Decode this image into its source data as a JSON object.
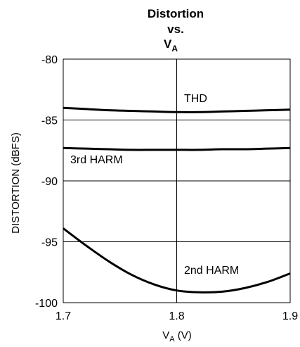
{
  "chart_data": {
    "type": "line",
    "title": "Distortion",
    "subtitle": "vs.",
    "title_line3_main": "V",
    "title_line3_sub": "A",
    "xlabel_main": "V",
    "xlabel_sub": "A",
    "xlabel_unit": " (V)",
    "ylabel": "DISTORTION (dBFS)",
    "xlim": [
      1.7,
      1.9
    ],
    "ylim": [
      -100,
      -80
    ],
    "x_ticks": [
      "1.7",
      "1.8",
      "1.9"
    ],
    "x_tick_values": [
      1.7,
      1.8,
      1.9
    ],
    "y_ticks": [
      "-80",
      "-85",
      "-90",
      "-95",
      "-100"
    ],
    "y_tick_values": [
      -80,
      -85,
      -90,
      -95,
      -100
    ],
    "grid": true,
    "series": [
      {
        "name": "THD",
        "x": [
          1.7,
          1.72,
          1.74,
          1.76,
          1.78,
          1.8,
          1.82,
          1.84,
          1.86,
          1.88,
          1.9
        ],
        "values": [
          -84.0,
          -84.1,
          -84.2,
          -84.25,
          -84.3,
          -84.35,
          -84.35,
          -84.3,
          -84.25,
          -84.2,
          -84.15
        ]
      },
      {
        "name": "3rd HARM",
        "x": [
          1.7,
          1.72,
          1.74,
          1.76,
          1.78,
          1.8,
          1.82,
          1.84,
          1.86,
          1.88,
          1.9
        ],
        "values": [
          -87.3,
          -87.35,
          -87.4,
          -87.45,
          -87.45,
          -87.45,
          -87.45,
          -87.4,
          -87.4,
          -87.35,
          -87.3
        ]
      },
      {
        "name": "2nd HARM",
        "x": [
          1.7,
          1.72,
          1.74,
          1.76,
          1.78,
          1.8,
          1.82,
          1.84,
          1.86,
          1.88,
          1.9
        ],
        "values": [
          -93.9,
          -95.3,
          -96.6,
          -97.7,
          -98.5,
          -99.0,
          -99.15,
          -99.1,
          -98.8,
          -98.3,
          -97.6
        ]
      }
    ]
  }
}
